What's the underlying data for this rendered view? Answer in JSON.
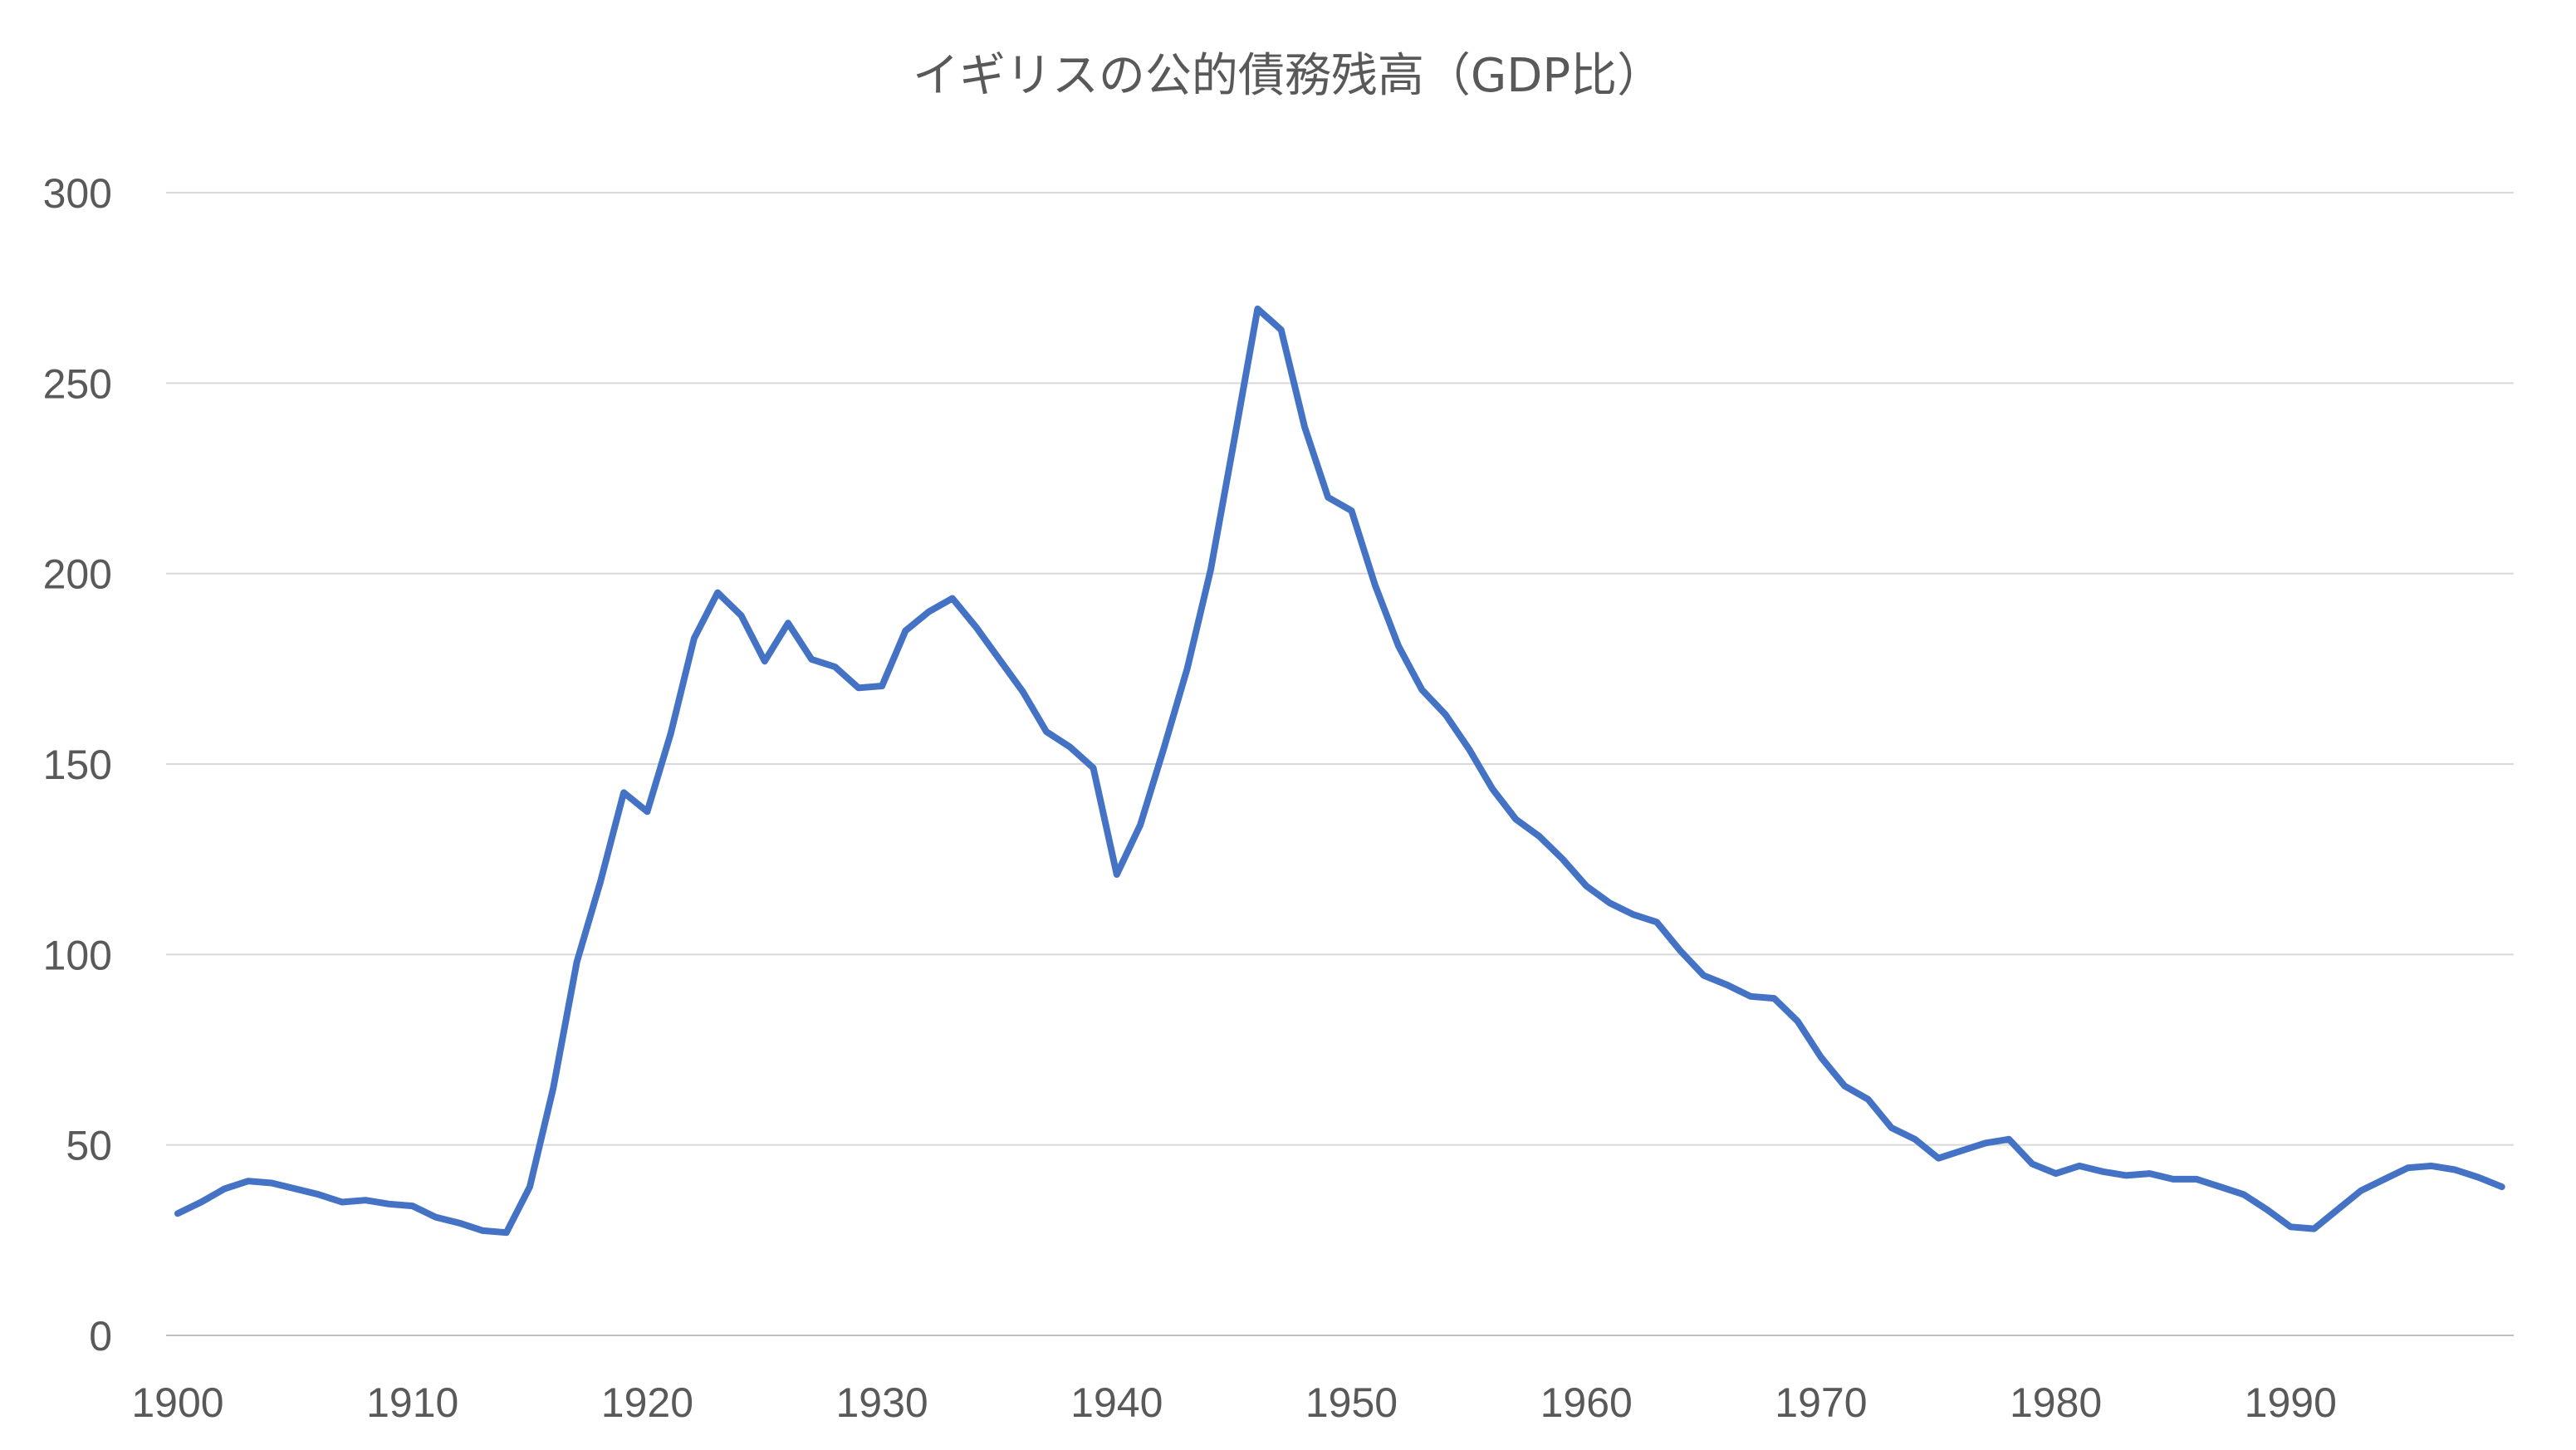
{
  "chart_data": {
    "type": "line",
    "title": "イギリスの公的債務残高（GDP比）",
    "xlabel": "",
    "ylabel": "",
    "xlim": [
      1900,
      1999
    ],
    "ylim": [
      0,
      300
    ],
    "y_ticks": [
      0,
      50,
      100,
      150,
      200,
      250,
      300
    ],
    "x_ticks": [
      1900,
      1910,
      1920,
      1930,
      1940,
      1950,
      1960,
      1970,
      1980,
      1990
    ],
    "grid": "horizontal",
    "legend": "none",
    "colors": {
      "series": "#4472c4",
      "grid": "#d9d9d9",
      "text": "#595959"
    },
    "series": [
      {
        "x": [
          1900,
          1901,
          1902,
          1903,
          1904,
          1905,
          1906,
          1907,
          1908,
          1909,
          1910,
          1911,
          1912,
          1913,
          1914,
          1915,
          1916,
          1917,
          1918,
          1919,
          1920,
          1921,
          1922,
          1923,
          1924,
          1925,
          1926,
          1927,
          1928,
          1929,
          1930,
          1931,
          1932,
          1933,
          1934,
          1935,
          1936,
          1937,
          1938,
          1939,
          1940,
          1941,
          1942,
          1943,
          1944,
          1945,
          1946,
          1947,
          1948,
          1949,
          1950,
          1951,
          1952,
          1953,
          1954,
          1955,
          1956,
          1957,
          1958,
          1959,
          1960,
          1961,
          1962,
          1963,
          1964,
          1965,
          1966,
          1967,
          1968,
          1969,
          1970,
          1971,
          1972,
          1973,
          1974,
          1975,
          1976,
          1977,
          1978,
          1979,
          1980,
          1981,
          1982,
          1983,
          1984,
          1985,
          1986,
          1987,
          1988,
          1989,
          1990,
          1991,
          1992,
          1993,
          1994,
          1995,
          1996,
          1997,
          1998,
          1999
        ],
        "values": [
          32,
          35,
          38.5,
          40.5,
          40,
          38.5,
          37,
          35,
          35.5,
          34.5,
          34,
          31,
          29.5,
          27.5,
          27,
          39,
          65,
          98,
          119,
          142.5,
          137.5,
          158,
          183,
          195,
          189,
          177,
          187,
          177.5,
          175.5,
          170,
          170.5,
          185,
          190,
          193.5,
          186,
          177.5,
          169,
          158.5,
          154.5,
          149,
          121,
          134,
          154,
          175,
          201,
          235,
          269.5,
          264,
          238.5,
          220,
          216.5,
          197,
          181,
          169.5,
          163,
          154,
          143.5,
          135.5,
          131,
          125,
          118,
          113.5,
          110.5,
          108.5,
          101,
          94.5,
          92,
          89,
          88.5,
          82.5,
          73,
          65.5,
          62,
          54.5,
          51.5,
          46.5,
          48.5,
          50.5,
          51.5,
          45,
          42.5,
          44.5,
          43,
          42,
          42.5,
          41,
          41,
          39,
          37,
          33,
          28.5,
          28,
          33,
          38,
          41,
          44,
          44.5,
          43.5,
          41.5,
          39
        ]
      }
    ]
  }
}
